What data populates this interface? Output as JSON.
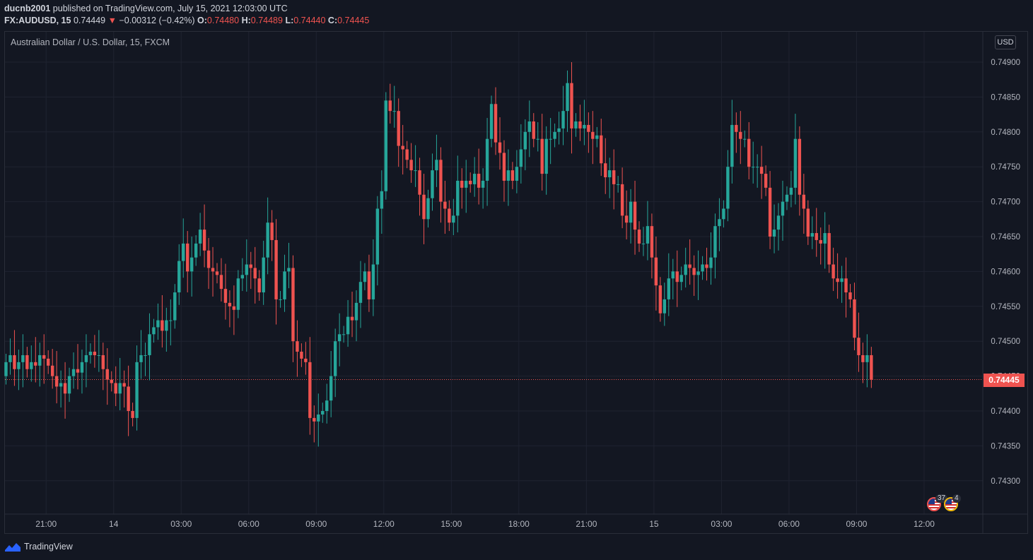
{
  "header": {
    "author": "ducnb2001",
    "published_text": " published on TradingView.com, July 15, 2021 12:03:00 UTC",
    "symbol": "FX:AUDUSD, 15",
    "last": "0.74449",
    "change_arrow": "▼",
    "change": "−0.00312 (−0.42%)",
    "o_label": "O:",
    "o_value": "0.74480",
    "h_label": "H:",
    "h_value": "0.74489",
    "l_label": "L:",
    "l_value": "0.74440",
    "c_label": "C:",
    "c_value": "0.74445"
  },
  "legend": {
    "title": "Australian Dollar / U.S. Dollar, 15, FXCM"
  },
  "currency": "USD",
  "price_label": "0.74445",
  "events": [
    {
      "icon": "us-flag-icon",
      "count": "37"
    },
    {
      "icon": "us-flag-icon",
      "count": "4"
    }
  ],
  "brand": {
    "name": "TradingView"
  },
  "colors": {
    "up": "#26a69a",
    "down": "#ef5350",
    "background": "#131722",
    "grid": "#1f2330",
    "text": "#b2b5be"
  },
  "chart_data": {
    "type": "candlestick",
    "title": "Australian Dollar / U.S. Dollar, 15, FXCM",
    "xlabel": "",
    "ylabel": "",
    "ylim": [
      0.7425,
      0.7495
    ],
    "y_ticks": [
      "0.74900",
      "0.74850",
      "0.74800",
      "0.74750",
      "0.74700",
      "0.74650",
      "0.74600",
      "0.74550",
      "0.74500",
      "0.74450",
      "0.74400",
      "0.74350",
      "0.74300"
    ],
    "x_ticks": [
      {
        "label": "21:00",
        "bar": 9.5
      },
      {
        "label": "14",
        "bar": 25.5
      },
      {
        "label": "03:00",
        "bar": 41.5
      },
      {
        "label": "06:00",
        "bar": 57.5
      },
      {
        "label": "09:00",
        "bar": 73.5
      },
      {
        "label": "12:00",
        "bar": 89.5
      },
      {
        "label": "15:00",
        "bar": 105.5
      },
      {
        "label": "18:00",
        "bar": 121.5
      },
      {
        "label": "21:00",
        "bar": 137.5
      },
      {
        "label": "15",
        "bar": 153.5
      },
      {
        "label": "03:00",
        "bar": 169.5
      },
      {
        "label": "06:00",
        "bar": 185.5
      },
      {
        "label": "09:00",
        "bar": 201.5
      },
      {
        "label": "12:00",
        "bar": 217.5
      }
    ],
    "last_price": 0.74445,
    "grid": true,
    "series": [
      {
        "name": "FX:AUDUSD",
        "close": [
          0.7447,
          0.7448,
          0.7446,
          0.7447,
          0.7448,
          0.7446,
          0.7447,
          0.74465,
          0.7448,
          0.74475,
          0.74465,
          0.7445,
          0.74435,
          0.7444,
          0.74425,
          0.7445,
          0.7446,
          0.74455,
          0.7447,
          0.7448,
          0.74485,
          0.7448,
          0.7448,
          0.7446,
          0.74445,
          0.7444,
          0.74425,
          0.7444,
          0.74435,
          0.744,
          0.7439,
          0.7447,
          0.7448,
          0.7448,
          0.7451,
          0.7452,
          0.7453,
          0.74515,
          0.7453,
          0.7453,
          0.7457,
          0.74615,
          0.7464,
          0.746,
          0.7462,
          0.7464,
          0.7466,
          0.7463,
          0.74605,
          0.746,
          0.74595,
          0.74575,
          0.74555,
          0.7455,
          0.74545,
          0.7459,
          0.74595,
          0.7461,
          0.74605,
          0.7459,
          0.7457,
          0.7462,
          0.7467,
          0.74645,
          0.7456,
          0.7456,
          0.746,
          0.74605,
          0.745,
          0.74485,
          0.74475,
          0.7447,
          0.7439,
          0.74385,
          0.74395,
          0.744,
          0.74415,
          0.7445,
          0.745,
          0.7451,
          0.7451,
          0.74535,
          0.7453,
          0.74555,
          0.74585,
          0.746,
          0.7456,
          0.7461,
          0.7469,
          0.74715,
          0.74845,
          0.7483,
          0.7483,
          0.7478,
          0.74775,
          0.7476,
          0.74745,
          0.74745,
          0.7471,
          0.74675,
          0.74705,
          0.74745,
          0.7476,
          0.747,
          0.7469,
          0.7467,
          0.7468,
          0.7473,
          0.7472,
          0.7473,
          0.74725,
          0.7474,
          0.7472,
          0.7473,
          0.7479,
          0.7484,
          0.74785,
          0.7477,
          0.7473,
          0.74745,
          0.7473,
          0.7475,
          0.74775,
          0.748,
          0.74815,
          0.7479,
          0.7479,
          0.7474,
          0.7479,
          0.7479,
          0.748,
          0.74805,
          0.7483,
          0.7487,
          0.74805,
          0.74815,
          0.74805,
          0.7481,
          0.748,
          0.7479,
          0.74795,
          0.74755,
          0.74735,
          0.74745,
          0.74725,
          0.74725,
          0.7468,
          0.7467,
          0.747,
          0.7466,
          0.7464,
          0.7464,
          0.74665,
          0.7462,
          0.7458,
          0.7454,
          0.7456,
          0.7459,
          0.746,
          0.74585,
          0.74595,
          0.7461,
          0.74605,
          0.74595,
          0.746,
          0.7461,
          0.74605,
          0.7462,
          0.74665,
          0.74675,
          0.7469,
          0.7475,
          0.7481,
          0.748,
          0.7479,
          0.7479,
          0.7475,
          0.7475,
          0.7475,
          0.7474,
          0.7472,
          0.7465,
          0.7466,
          0.7468,
          0.747,
          0.7471,
          0.7472,
          0.7479,
          0.7471,
          0.7469,
          0.7465,
          0.74655,
          0.74645,
          0.7464,
          0.74655,
          0.7461,
          0.7459,
          0.74585,
          0.7459,
          0.7457,
          0.7456,
          0.74505,
          0.7448,
          0.7447,
          0.7448,
          0.74445
        ],
        "open": [
          0.7445,
          0.7447,
          0.7448,
          0.7446,
          0.7447,
          0.7448,
          0.7446,
          0.7447,
          0.74465,
          0.7448,
          0.74475,
          0.74465,
          0.7445,
          0.74435,
          0.7444,
          0.74425,
          0.7445,
          0.7446,
          0.74455,
          0.7447,
          0.7448,
          0.74485,
          0.7448,
          0.7448,
          0.7446,
          0.74445,
          0.7444,
          0.74425,
          0.7444,
          0.74435,
          0.744,
          0.7439,
          0.7447,
          0.7448,
          0.7448,
          0.7451,
          0.7452,
          0.7453,
          0.74515,
          0.7453,
          0.7453,
          0.7457,
          0.74615,
          0.7464,
          0.746,
          0.7462,
          0.7464,
          0.7466,
          0.7463,
          0.74605,
          0.746,
          0.74595,
          0.74575,
          0.74555,
          0.7455,
          0.74545,
          0.7459,
          0.74595,
          0.7461,
          0.74605,
          0.7459,
          0.7457,
          0.7462,
          0.7467,
          0.74645,
          0.7456,
          0.7456,
          0.746,
          0.74605,
          0.745,
          0.74485,
          0.74475,
          0.7447,
          0.7439,
          0.74385,
          0.74395,
          0.744,
          0.74415,
          0.7445,
          0.745,
          0.7451,
          0.7451,
          0.74535,
          0.7453,
          0.74555,
          0.74585,
          0.746,
          0.7456,
          0.7461,
          0.7469,
          0.74715,
          0.74845,
          0.7483,
          0.7483,
          0.7478,
          0.74775,
          0.7476,
          0.74745,
          0.74745,
          0.7471,
          0.74675,
          0.74705,
          0.74745,
          0.7476,
          0.747,
          0.7469,
          0.7467,
          0.7468,
          0.7473,
          0.7472,
          0.7473,
          0.74725,
          0.7474,
          0.7472,
          0.7473,
          0.7479,
          0.7484,
          0.74785,
          0.7477,
          0.7473,
          0.74745,
          0.7473,
          0.7475,
          0.74775,
          0.748,
          0.74815,
          0.7479,
          0.7479,
          0.7474,
          0.7479,
          0.7479,
          0.748,
          0.74805,
          0.7483,
          0.7487,
          0.74805,
          0.74815,
          0.74805,
          0.7481,
          0.748,
          0.7479,
          0.74795,
          0.74755,
          0.74735,
          0.74745,
          0.74725,
          0.74725,
          0.7468,
          0.7467,
          0.747,
          0.7466,
          0.7464,
          0.7464,
          0.74665,
          0.7462,
          0.7458,
          0.7454,
          0.7456,
          0.7459,
          0.746,
          0.74585,
          0.74595,
          0.7461,
          0.74605,
          0.74595,
          0.746,
          0.7461,
          0.74605,
          0.7462,
          0.74665,
          0.74675,
          0.7469,
          0.7475,
          0.7481,
          0.748,
          0.7479,
          0.7479,
          0.7475,
          0.7475,
          0.7475,
          0.7474,
          0.7472,
          0.7465,
          0.7466,
          0.7468,
          0.747,
          0.7471,
          0.7472,
          0.7479,
          0.7471,
          0.7469,
          0.7465,
          0.74655,
          0.74645,
          0.7464,
          0.74655,
          0.7461,
          0.7459,
          0.74585,
          0.7459,
          0.7457,
          0.7456,
          0.74505,
          0.7448,
          0.7447,
          0.7448
        ]
      }
    ]
  }
}
